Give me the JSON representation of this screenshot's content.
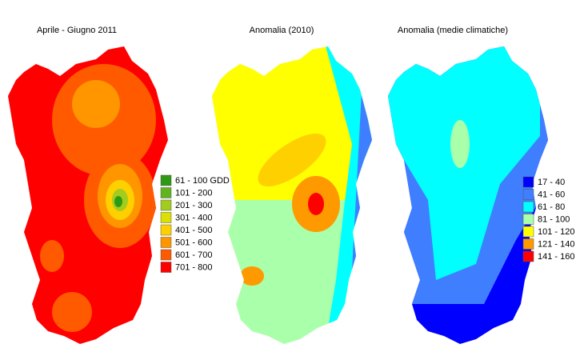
{
  "maps": [
    {
      "title": "Aprile - Giugno 2011",
      "legend": [
        {
          "label": "61 - 100 GDD",
          "color": "#2e9a14"
        },
        {
          "label": "101 - 200",
          "color": "#62b41e"
        },
        {
          "label": "201 - 300",
          "color": "#a2cc1e"
        },
        {
          "label": "301 - 400",
          "color": "#dbe000"
        },
        {
          "label": "401 - 500",
          "color": "#ffd000"
        },
        {
          "label": "501 - 600",
          "color": "#ff9600"
        },
        {
          "label": "601 - 700",
          "color": "#ff5a00"
        },
        {
          "label": "701 - 800",
          "color": "#ff0000"
        }
      ]
    },
    {
      "title": "Anomalia (2010)"
    },
    {
      "title": "Anomalia (medie climatiche)",
      "legend": [
        {
          "label": "17 - 40",
          "color": "#0000ff"
        },
        {
          "label": "41 - 60",
          "color": "#3f7fff"
        },
        {
          "label": "61 - 80",
          "color": "#00ffff"
        },
        {
          "label": "81 - 100",
          "color": "#aaffaa"
        },
        {
          "label": "101 - 120",
          "color": "#ffff00"
        },
        {
          "label": "121 - 140",
          "color": "#ff9900"
        },
        {
          "label": "141 - 160",
          "color": "#ff0000"
        }
      ]
    }
  ]
}
